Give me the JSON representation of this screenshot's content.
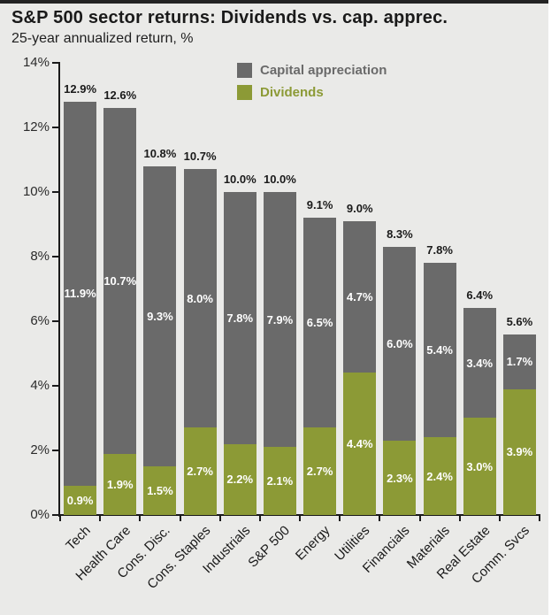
{
  "header": {
    "title": "S&P 500 sector returns: Dividends vs. cap. apprec.",
    "subtitle": "25-year annualized return, %"
  },
  "chart_data": {
    "type": "bar",
    "variant": "stacked",
    "title": "S&P 500 sector returns: Dividends vs. cap. apprec.",
    "subtitle": "25-year annualized return, %",
    "categories": [
      "Tech",
      "Health Care",
      "Cons. Disc.",
      "Cons. Staples",
      "Industrials",
      "S&P 500",
      "Energy",
      "Utilities",
      "Financials",
      "Materials",
      "Real Estate",
      "Comm. Svcs"
    ],
    "series": [
      {
        "name": "Capital appreciation",
        "color": "#6a6a6a",
        "values": [
          11.9,
          10.7,
          9.3,
          8.0,
          7.8,
          7.9,
          6.5,
          4.7,
          6.0,
          5.4,
          3.4,
          1.7
        ]
      },
      {
        "name": "Dividends",
        "color": "#8c9a36",
        "values": [
          0.9,
          1.9,
          1.5,
          2.7,
          2.2,
          2.1,
          2.7,
          4.4,
          2.3,
          2.4,
          3.0,
          3.9
        ]
      }
    ],
    "totals": [
      12.9,
      12.6,
      10.8,
      10.7,
      10.0,
      10.0,
      9.1,
      9.0,
      8.3,
      7.8,
      6.4,
      5.6
    ],
    "xlabel": "",
    "ylabel": "",
    "ylim": [
      0,
      14
    ],
    "y_tick_labels": [
      "14%",
      "12%",
      "10%",
      "8%",
      "6%",
      "4%",
      "2%",
      "0%"
    ],
    "grid": false,
    "legend_position": "top-center",
    "label_format": "one-decimal-percent",
    "segment_label_color": "#ffffff"
  },
  "colors": {
    "background": "#eaeae8",
    "page_margin": "#ffffff",
    "top_strip": "#232323",
    "axis": "#1a1a1a",
    "capital_appreciation": "#6a6a6a",
    "dividends": "#8c9a36"
  }
}
